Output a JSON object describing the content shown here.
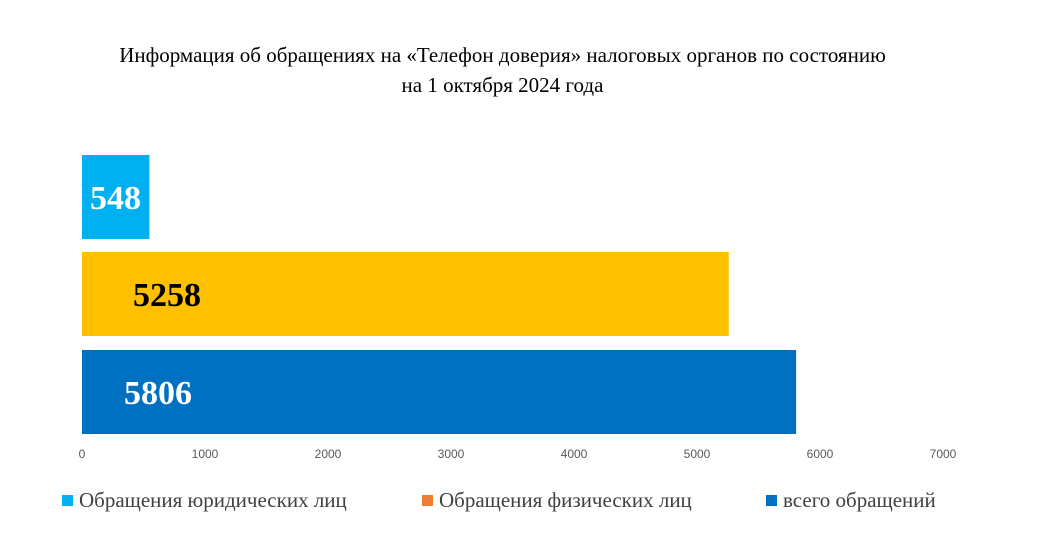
{
  "chart_data": {
    "type": "bar",
    "orientation": "horizontal",
    "title_line1": "Информация об обращениях на «Телефон доверия» налоговых органов по состоянию",
    "title_line2": "на 1 октября 2024 года",
    "xlim": [
      0,
      7000
    ],
    "x_ticks": [
      "0",
      "1000",
      "2000",
      "3000",
      "4000",
      "5000",
      "6000",
      "7000"
    ],
    "grid": false,
    "legend_position": "bottom",
    "series": [
      {
        "name": "Обращения юридических лиц",
        "value": 548,
        "label": "548",
        "bar_color": "#00B0F0",
        "legend_color": "#00B0F0",
        "label_color": "#ffffff"
      },
      {
        "name": "Обращения физических лиц",
        "value": 5258,
        "label": "5258",
        "bar_color": "#FFC000",
        "legend_color": "#ED7D31",
        "label_color": "#000000"
      },
      {
        "name": "всего обращений",
        "value": 5806,
        "label": "5806",
        "bar_color": "#0070C0",
        "legend_color": "#0070C0",
        "label_color": "#ffffff"
      }
    ]
  }
}
